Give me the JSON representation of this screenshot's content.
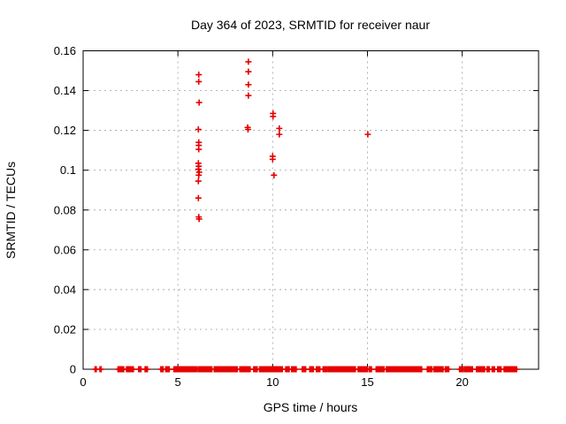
{
  "title": "Day 364 of 2023, SRMTID for receiver naur",
  "colors": {
    "marker": "#e60000",
    "axis": "#000000",
    "grid": "#a8a8a8",
    "background": "#ffffff"
  },
  "chart_data": {
    "type": "scatter",
    "title": "Day 364 of 2023, SRMTID for receiver naur",
    "xlabel": "GPS time / hours",
    "ylabel": "SRMTID / TECUs",
    "xlim": [
      0,
      24.03
    ],
    "ylim": [
      0,
      0.16
    ],
    "xticks": [
      0,
      5,
      10,
      15,
      20
    ],
    "xtick_labels": [
      "0",
      "5",
      "10",
      "15",
      "20"
    ],
    "yticks": [
      0,
      0.02,
      0.04,
      0.06,
      0.08,
      0.1,
      0.12,
      0.14,
      0.16
    ],
    "ytick_labels": [
      "0",
      "0.02",
      "0.04",
      "0.06",
      "0.08",
      "0.1",
      "0.12",
      "0.14",
      "0.16"
    ],
    "grid": true,
    "legend_position": "none",
    "marker": {
      "shape": "plus",
      "color": "#e60000",
      "size": 7
    },
    "series": [
      {
        "name": "srmtid-points",
        "points": [
          [
            6.1,
            0.148
          ],
          [
            6.1,
            0.1445
          ],
          [
            6.12,
            0.134
          ],
          [
            6.08,
            0.1205
          ],
          [
            6.1,
            0.114
          ],
          [
            6.1,
            0.1125
          ],
          [
            6.1,
            0.1105
          ],
          [
            6.08,
            0.1035
          ],
          [
            6.1,
            0.102
          ],
          [
            6.08,
            0.1005
          ],
          [
            6.12,
            0.099
          ],
          [
            6.1,
            0.0975
          ],
          [
            6.08,
            0.0945
          ],
          [
            6.08,
            0.086
          ],
          [
            6.1,
            0.0765
          ],
          [
            6.12,
            0.0755
          ],
          [
            8.72,
            0.1545
          ],
          [
            8.72,
            0.1495
          ],
          [
            8.72,
            0.143
          ],
          [
            8.72,
            0.1375
          ],
          [
            8.68,
            0.1215
          ],
          [
            8.7,
            0.1205
          ],
          [
            10.02,
            0.1285
          ],
          [
            10.02,
            0.127
          ],
          [
            10.35,
            0.121
          ],
          [
            10.35,
            0.118
          ],
          [
            10.0,
            0.107
          ],
          [
            10.0,
            0.1055
          ],
          [
            10.07,
            0.0975
          ],
          [
            15.02,
            0.118
          ]
        ]
      }
    ],
    "baseline_value": 0,
    "baseline_segments": [
      [
        0.63,
        0.7
      ],
      [
        0.89,
        0.97
      ],
      [
        1.84,
        2.14
      ],
      [
        2.29,
        2.68
      ],
      [
        2.93,
        3.05
      ],
      [
        3.27,
        3.44
      ],
      [
        4.1,
        4.24
      ],
      [
        4.36,
        4.54
      ],
      [
        4.79,
        6.02
      ],
      [
        6.07,
        6.84
      ],
      [
        6.92,
        7.12
      ],
      [
        7.17,
        8.14
      ],
      [
        8.27,
        8.84
      ],
      [
        9.0,
        9.19
      ],
      [
        9.31,
        10.55
      ],
      [
        10.69,
        10.89
      ],
      [
        11.0,
        11.26
      ],
      [
        11.56,
        11.74
      ],
      [
        11.96,
        12.19
      ],
      [
        12.31,
        12.51
      ],
      [
        12.66,
        12.84
      ],
      [
        12.92,
        14.41
      ],
      [
        14.51,
        14.99
      ],
      [
        15.09,
        15.21
      ],
      [
        15.46,
        15.91
      ],
      [
        16.0,
        17.91
      ],
      [
        18.16,
        18.41
      ],
      [
        18.51,
        18.99
      ],
      [
        19.11,
        19.31
      ],
      [
        19.86,
        20.04
      ],
      [
        20.12,
        20.59
      ],
      [
        20.76,
        21.19
      ],
      [
        21.31,
        21.46
      ],
      [
        21.58,
        21.71
      ],
      [
        21.87,
        22.09
      ],
      [
        22.21,
        22.89
      ]
    ]
  }
}
